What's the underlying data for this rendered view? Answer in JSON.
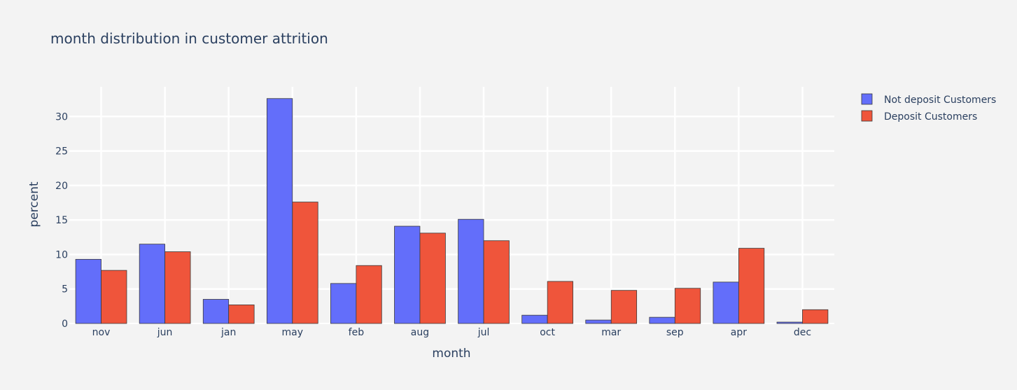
{
  "chart_data": {
    "type": "bar",
    "title": "month distribution in customer attrition",
    "xlabel": "month",
    "ylabel": "percent",
    "categories": [
      "nov",
      "jun",
      "jan",
      "may",
      "feb",
      "aug",
      "jul",
      "oct",
      "mar",
      "sep",
      "apr",
      "dec"
    ],
    "series": [
      {
        "name": "Not deposit Customers",
        "color": "#636efa",
        "values": [
          9.3,
          11.5,
          3.5,
          32.6,
          5.8,
          14.1,
          15.1,
          1.2,
          0.5,
          0.9,
          6.0,
          0.2
        ]
      },
      {
        "name": "Deposit Customers",
        "color": "#ef553b",
        "values": [
          7.7,
          10.4,
          2.7,
          17.6,
          8.4,
          13.1,
          12.0,
          6.1,
          4.8,
          5.1,
          10.9,
          2.0
        ]
      }
    ],
    "ylim": [
      0,
      34.3
    ],
    "yticks": [
      0,
      5,
      10,
      15,
      20,
      25,
      30
    ],
    "grid": true,
    "legend_position": "top-right"
  }
}
